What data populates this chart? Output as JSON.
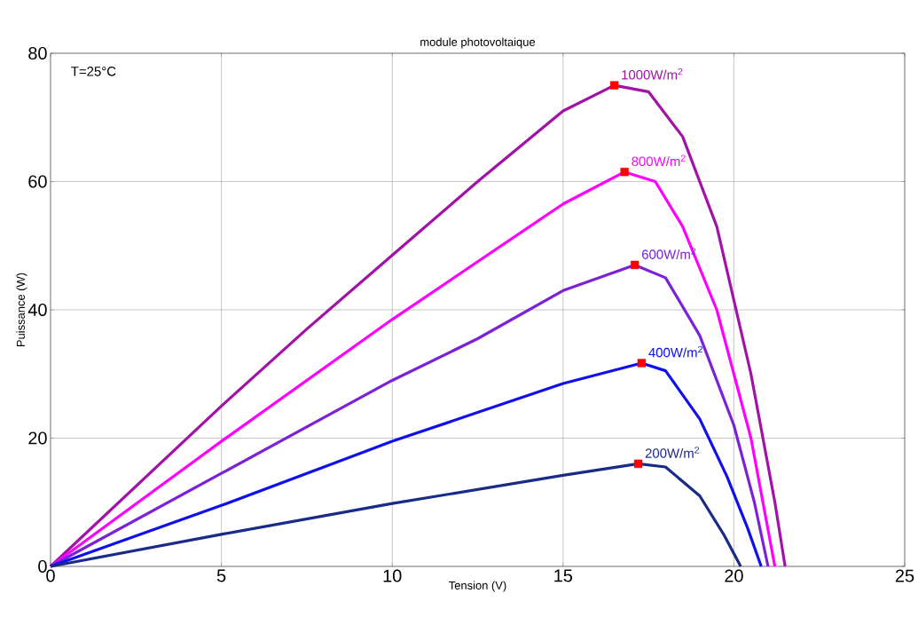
{
  "chart_data": {
    "type": "line",
    "title": "module photovoltaique",
    "xlabel": "Tension (V)",
    "ylabel": "Puissance (W)",
    "xlim": [
      0,
      25
    ],
    "ylim": [
      0,
      80
    ],
    "xticks": [
      0,
      5,
      10,
      15,
      20,
      25
    ],
    "yticks": [
      0,
      20,
      40,
      60,
      80
    ],
    "grid": true,
    "line_style": "solid",
    "series": [
      {
        "name": "1000W/m$^{2}$",
        "color": "#a312a8",
        "x": [
          0,
          2.5,
          5,
          7.5,
          10,
          12.5,
          15,
          16.5,
          17.5,
          18.5,
          19.5,
          20.5,
          21.2,
          21.5
        ],
        "values": [
          0,
          12.5,
          25,
          37,
          48.5,
          60,
          71,
          75,
          74,
          67,
          53,
          30,
          10,
          0
        ]
      },
      {
        "name": "800W/m$^{2}$",
        "color": "#ff00ff",
        "x": [
          0,
          5,
          10,
          12.5,
          15,
          16.8,
          17.7,
          18.5,
          19.5,
          20.5,
          21.2
        ],
        "values": [
          0,
          19.5,
          38.5,
          47.5,
          56.5,
          61.5,
          60,
          53,
          40,
          20,
          0
        ]
      },
      {
        "name": "600W/m$^{2}$",
        "color": "#7b22d8",
        "x": [
          0,
          5,
          10,
          12.5,
          15,
          17.1,
          18,
          19,
          20,
          20.6,
          21.0
        ],
        "values": [
          0,
          14.5,
          29,
          35.5,
          43,
          47,
          45,
          36,
          22,
          10,
          0
        ]
      },
      {
        "name": "400W/m$^{2}$",
        "color": "#1010ee",
        "x": [
          0,
          5,
          10,
          12.5,
          15,
          17.3,
          18,
          19,
          19.8,
          20.4,
          20.8
        ],
        "values": [
          0,
          9.5,
          19.5,
          24,
          28.5,
          31.7,
          30.5,
          23,
          14,
          6,
          0
        ]
      },
      {
        "name": "200W/m$^{2}$",
        "color": "#1a2a88",
        "x": [
          0,
          5,
          10,
          15,
          17.2,
          18,
          19,
          19.7,
          20.2
        ],
        "values": [
          0,
          5,
          9.8,
          14.2,
          16,
          15.5,
          11,
          5,
          0
        ]
      },
      {
        "type": "scatter",
        "marker": "square",
        "color": "#ff0000",
        "x": [
          16.5,
          16.8,
          17.1,
          17.3,
          17.2
        ],
        "values": [
          75,
          61.5,
          47,
          31.7,
          16
        ]
      }
    ],
    "annotations": [
      "T=25°C"
    ]
  }
}
